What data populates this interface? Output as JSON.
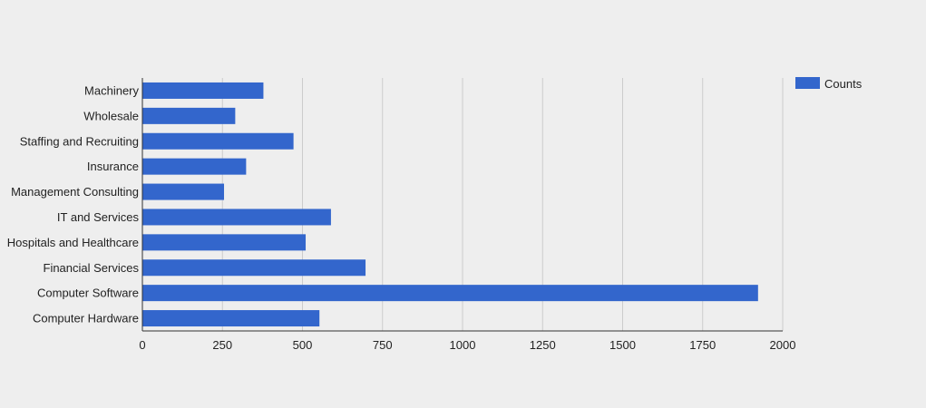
{
  "chart_data": {
    "type": "bar",
    "orientation": "horizontal",
    "title": "",
    "xlabel": "",
    "ylabel": "",
    "categories": [
      "Machinery",
      "Wholesale",
      "Staffing and Recruiting",
      "Insurance",
      "Management Consulting",
      "IT and Services",
      "Hospitals and Healthcare",
      "Financial Services",
      "Computer Software",
      "Computer Hardware"
    ],
    "series": [
      {
        "name": "Counts",
        "values": [
          378,
          290,
          472,
          324,
          255,
          589,
          510,
          697,
          1923,
          553
        ]
      }
    ],
    "xlim": [
      0,
      2000
    ],
    "xticks": [
      0,
      250,
      500,
      750,
      1000,
      1250,
      1500,
      1750,
      2000
    ],
    "grid": true,
    "legend_position": "top-right",
    "colors": {
      "bar": "#3366cc",
      "grid": "#cccccc",
      "axis": "#333333",
      "background": "#eeeeee"
    }
  }
}
